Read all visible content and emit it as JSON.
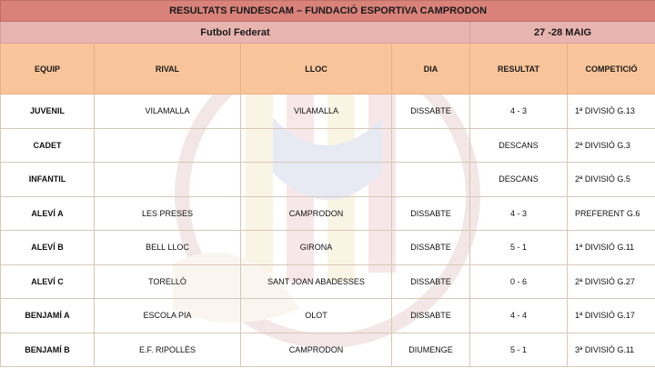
{
  "title": "RESULTATS FUNDESCAM – FUNDACIÓ ESPORTIVA CAMPRODON",
  "section": "Futbol Federat",
  "date": "27 -28 MAIG",
  "columns": [
    "EQUIP",
    "RIVAL",
    "LLOC",
    "DIA",
    "RESULTAT",
    "COMPETICIÓ"
  ],
  "colors": {
    "win": "#9bbb59",
    "loss": "#c0504d",
    "draw": "#f79646",
    "header": "#f9c49a",
    "title": "#d9827a"
  },
  "rows": [
    {
      "team": "JUVENIL",
      "rival": "VILAMALLA",
      "place": "VILAMALLA",
      "day": "DISSABTE",
      "result": "4 - 3",
      "status": "loss",
      "competition": "1ª DIVISIÓ G.13"
    },
    {
      "team": "CADET",
      "rival": "",
      "place": "",
      "day": "",
      "result": "DESCANS",
      "status": "none",
      "competition": "2ª DIVISIÓ G.3"
    },
    {
      "team": "INFANTIL",
      "rival": "",
      "place": "",
      "day": "",
      "result": "DESCANS",
      "status": "none",
      "competition": "2ª DIVISIÓ G.5"
    },
    {
      "team": "ALEVÍ A",
      "rival": "LES PRESES",
      "place": "CAMPRODON",
      "day": "DISSABTE",
      "result": "4 - 3",
      "status": "win",
      "competition": "PREFERENT G.6"
    },
    {
      "team": "ALEVÍ B",
      "rival": "BELL LLOC",
      "place": "GIRONA",
      "day": "DISSABTE",
      "result": "5 - 1",
      "status": "win",
      "competition": "1ª DIVISIÓ G.11"
    },
    {
      "team": "ALEVÍ C",
      "rival": "TORELLÓ",
      "place": "SANT JOAN ABADESSES",
      "day": "DISSABTE",
      "result": "0 - 6",
      "status": "loss",
      "competition": "2ª DIVISIÓ G.27"
    },
    {
      "team": "BENJAMÍ A",
      "rival": "ESCOLA PIA",
      "place": "OLOT",
      "day": "DISSABTE",
      "result": "4 - 4",
      "status": "draw",
      "competition": "1ª DIVISIÓ G.17"
    },
    {
      "team": "BENJAMÍ B",
      "rival": "E.F. RIPOLLÈS",
      "place": "CAMPRODON",
      "day": "DIUMENGE",
      "result": "5 - 1",
      "status": "win",
      "competition": "3ª DIVISIÓ G.11"
    }
  ]
}
